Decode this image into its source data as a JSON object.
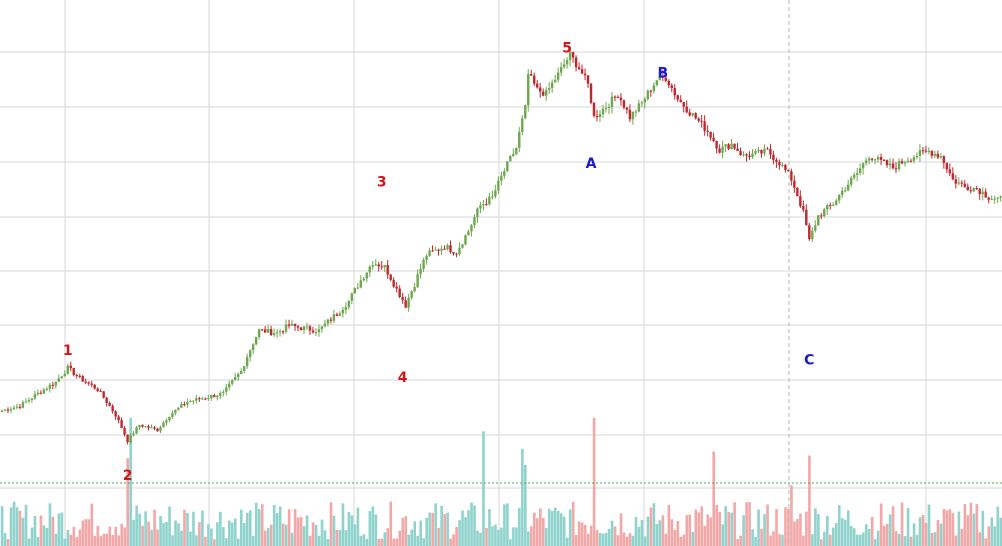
{
  "chart_data": {
    "type": "candlestick",
    "grid": true,
    "colors": {
      "up": "#6ea84e",
      "down": "#c0272d",
      "volume_up": "#8fd3cc",
      "volume_down": "#f3a7a7",
      "grid": "#d7d7d7",
      "impulse_label": "#d0161b",
      "corrective_label": "#1a1acb",
      "marker_line": "#b5b5b5",
      "baseline": "#4caf50"
    },
    "wave_labels": [
      {
        "text": "1",
        "kind": "impulse",
        "x": 22,
        "price": 3.0
      },
      {
        "text": "2",
        "kind": "impulse",
        "x": 42,
        "price": 0.3
      },
      {
        "text": "3",
        "kind": "impulse",
        "x": 127,
        "price": 14.0
      },
      {
        "text": "4",
        "kind": "impulse",
        "x": 134,
        "price": 2.2
      },
      {
        "text": "5",
        "kind": "impulse",
        "x": 189,
        "price": 40.0
      },
      {
        "text": "A",
        "kind": "corrective",
        "x": 197,
        "price": 16.3
      },
      {
        "text": "B",
        "kind": "corrective",
        "x": 221,
        "price": 33.0
      },
      {
        "text": "C",
        "kind": "corrective",
        "x": 270,
        "price": 2.7
      }
    ],
    "close_path": [
      [
        0,
        1.5
      ],
      [
        6,
        1.6
      ],
      [
        12,
        1.9
      ],
      [
        18,
        2.2
      ],
      [
        22,
        2.6
      ],
      [
        26,
        2.3
      ],
      [
        32,
        2.0
      ],
      [
        38,
        1.4
      ],
      [
        42,
        0.9
      ],
      [
        46,
        1.2
      ],
      [
        52,
        1.1
      ],
      [
        56,
        1.4
      ],
      [
        62,
        1.7
      ],
      [
        68,
        1.8
      ],
      [
        74,
        1.9
      ],
      [
        80,
        2.5
      ],
      [
        86,
        3.9
      ],
      [
        92,
        3.8
      ],
      [
        96,
        4.1
      ],
      [
        100,
        4.0
      ],
      [
        106,
        3.9
      ],
      [
        112,
        4.6
      ],
      [
        116,
        5.2
      ],
      [
        120,
        6.3
      ],
      [
        124,
        7.4
      ],
      [
        128,
        7.1
      ],
      [
        132,
        5.8
      ],
      [
        135,
        5.0
      ],
      [
        138,
        6.1
      ],
      [
        142,
        7.9
      ],
      [
        148,
        8.5
      ],
      [
        152,
        8.1
      ],
      [
        156,
        9.7
      ],
      [
        160,
        12.0
      ],
      [
        164,
        12.8
      ],
      [
        168,
        15.9
      ],
      [
        172,
        19.1
      ],
      [
        175,
        26.0
      ],
      [
        176,
        33.8
      ],
      [
        179,
        30.0
      ],
      [
        182,
        29.2
      ],
      [
        186,
        33.8
      ],
      [
        190,
        39.2
      ],
      [
        193,
        35.5
      ],
      [
        196,
        31.2
      ],
      [
        198,
        24.3
      ],
      [
        202,
        26.4
      ],
      [
        206,
        29.1
      ],
      [
        210,
        24.3
      ],
      [
        214,
        27.1
      ],
      [
        219,
        32.5
      ],
      [
        222,
        33.0
      ],
      [
        226,
        28.0
      ],
      [
        230,
        25.3
      ],
      [
        236,
        21.8
      ],
      [
        240,
        18.8
      ],
      [
        244,
        19.7
      ],
      [
        248,
        17.9
      ],
      [
        252,
        18.2
      ],
      [
        256,
        18.6
      ],
      [
        260,
        17.0
      ],
      [
        264,
        14.9
      ],
      [
        268,
        11.3
      ],
      [
        270,
        8.9
      ],
      [
        273,
        11.0
      ],
      [
        278,
        12.2
      ],
      [
        282,
        13.9
      ],
      [
        286,
        15.6
      ],
      [
        290,
        18.0
      ],
      [
        294,
        17.1
      ],
      [
        298,
        16.3
      ],
      [
        302,
        17.3
      ],
      [
        306,
        18.1
      ],
      [
        310,
        18.6
      ],
      [
        314,
        17.9
      ],
      [
        318,
        14.8
      ],
      [
        322,
        14.0
      ],
      [
        326,
        13.8
      ],
      [
        330,
        12.9
      ],
      [
        334,
        12.6
      ]
    ]
  }
}
